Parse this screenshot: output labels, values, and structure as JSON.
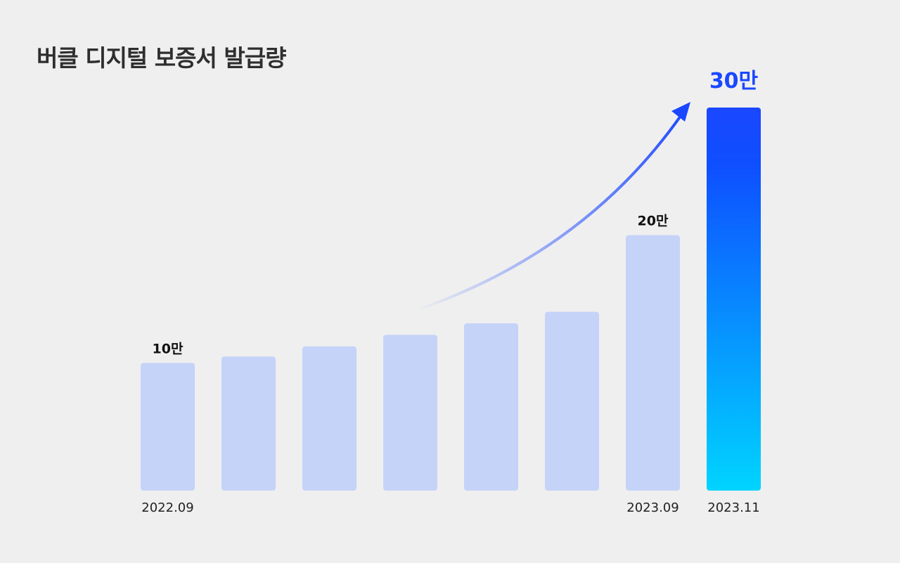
{
  "chart_data": {
    "type": "bar",
    "title": "버클 디지털 보증서 발급량",
    "categories": [
      "2022.09",
      "",
      "",
      "",
      "",
      "",
      "2023.09",
      "2023.11"
    ],
    "values": [
      10,
      10.5,
      11.3,
      12.2,
      13.1,
      14.0,
      20,
      30
    ],
    "data_labels": [
      "10만",
      "",
      "",
      "",
      "",
      "",
      "20만",
      "30만"
    ],
    "unit": "만",
    "ylim": [
      0,
      30
    ],
    "grid": false,
    "colors": {
      "bar": "#c5d3f9",
      "highlight_top": "#1a47ff",
      "highlight_bottom": "#00d4ff",
      "highlight_label": "#1a47ff",
      "label": "#111111",
      "arrow": "#1a47ff"
    },
    "annotations": [
      "growth arrow"
    ]
  }
}
